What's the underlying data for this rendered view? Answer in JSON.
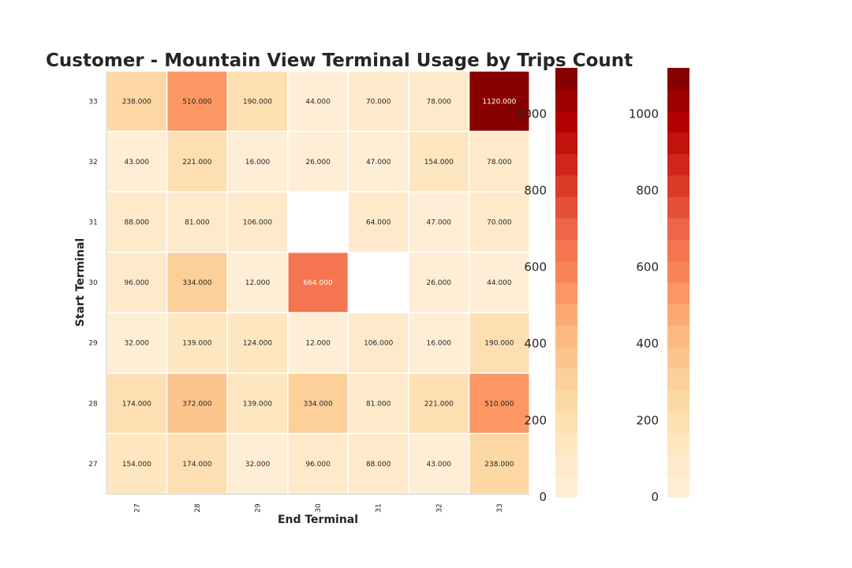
{
  "chart_data": {
    "type": "heatmap",
    "title": "Customer - Mountain View Terminal Usage by Trips Count",
    "xlabel": "End Terminal",
    "ylabel": "Start Terminal",
    "x_categories": [
      "27",
      "28",
      "29",
      "30",
      "31",
      "32",
      "33"
    ],
    "y_categories": [
      "33",
      "32",
      "31",
      "30",
      "29",
      "28",
      "27"
    ],
    "values": [
      [
        238,
        510,
        190,
        44,
        70,
        78,
        1120
      ],
      [
        43,
        221,
        16,
        26,
        47,
        154,
        78
      ],
      [
        88,
        81,
        106,
        null,
        64,
        47,
        70
      ],
      [
        96,
        334,
        12,
        664,
        null,
        26,
        44
      ],
      [
        32,
        139,
        124,
        12,
        106,
        16,
        190
      ],
      [
        174,
        372,
        139,
        334,
        81,
        221,
        510
      ],
      [
        154,
        174,
        32,
        96,
        88,
        43,
        238
      ]
    ],
    "value_format": "3 decimals",
    "color_scale": {
      "min": 0,
      "max": 1120,
      "levels": 20,
      "colors": [
        "#fff0dc",
        "#fee6c0",
        "#fdd49e",
        "#fdbb84",
        "#fc8d59",
        "#ef6548",
        "#d7301f",
        "#b30000",
        "#7f0000"
      ]
    },
    "colorbar_ticks": [
      "0",
      "200",
      "400",
      "600",
      "800",
      "1000"
    ],
    "colorbars": 2
  }
}
